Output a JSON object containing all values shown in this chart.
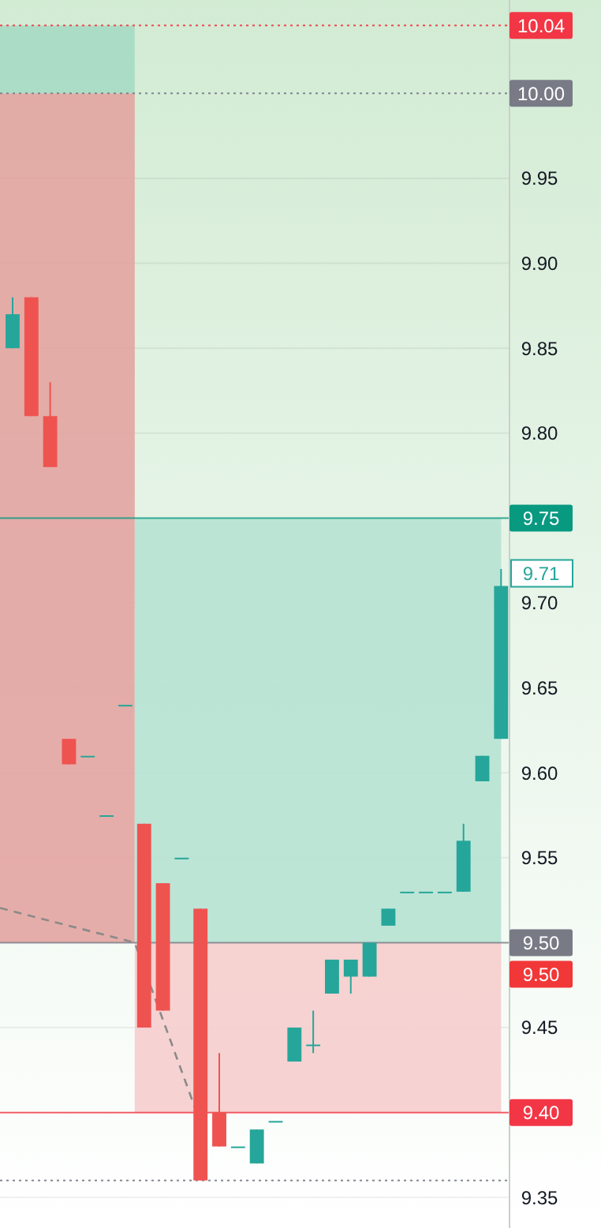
{
  "chart_data": {
    "type": "candlestick",
    "categories": [
      null,
      null,
      null,
      null,
      null,
      null,
      null,
      null,
      null,
      null,
      null,
      null,
      null,
      null,
      null,
      null,
      null,
      null,
      null,
      null,
      null,
      null,
      null,
      null,
      null,
      null,
      null
    ],
    "ohlc": [
      [
        9.85,
        9.88,
        9.85,
        9.87
      ],
      [
        9.88,
        9.88,
        9.81,
        9.81
      ],
      [
        9.81,
        9.83,
        9.78,
        9.78
      ],
      [
        9.62,
        9.62,
        9.605,
        9.605
      ],
      [
        9.61,
        9.61,
        9.61,
        9.61
      ],
      [
        9.575,
        9.575,
        9.575,
        9.575
      ],
      [
        9.64,
        9.64,
        9.64,
        9.64
      ],
      [
        9.57,
        9.57,
        9.45,
        9.45
      ],
      [
        9.535,
        9.535,
        9.46,
        9.46
      ],
      [
        9.55,
        9.55,
        9.55,
        9.55
      ],
      [
        9.52,
        9.52,
        9.36,
        9.36
      ],
      [
        9.4,
        9.435,
        9.38,
        9.38
      ],
      [
        9.38,
        9.38,
        9.38,
        9.38
      ],
      [
        9.37,
        9.39,
        9.37,
        9.39
      ],
      [
        9.395,
        9.395,
        9.395,
        9.395
      ],
      [
        9.43,
        9.45,
        9.43,
        9.45
      ],
      [
        9.44,
        9.46,
        9.435,
        9.44
      ],
      [
        9.47,
        9.49,
        9.47,
        9.49
      ],
      [
        9.48,
        9.49,
        9.47,
        9.49
      ],
      [
        9.48,
        9.5,
        9.48,
        9.5
      ],
      [
        9.51,
        9.52,
        9.51,
        9.52
      ],
      [
        9.53,
        9.53,
        9.53,
        9.53
      ],
      [
        9.53,
        9.53,
        9.53,
        9.53
      ],
      [
        9.53,
        9.53,
        9.53,
        9.53
      ],
      [
        9.53,
        9.57,
        9.53,
        9.56
      ],
      [
        9.595,
        9.61,
        9.595,
        9.61
      ],
      [
        9.62,
        9.72,
        9.62,
        9.71
      ]
    ],
    "colors": [
      "#26a69a",
      "#ef5350",
      "#ef5350",
      "#ef5350",
      "#26a69a",
      "#26a69a",
      "#26a69a",
      "#ef5350",
      "#ef5350",
      "#26a69a",
      "#ef5350",
      "#ef5350",
      "#26a69a",
      "#26a69a",
      "#26a69a",
      "#26a69a",
      "#26a69a",
      "#26a69a",
      "#26a69a",
      "#26a69a",
      "#26a69a",
      "#26a69a",
      "#26a69a",
      "#26a69a",
      "#26a69a",
      "#26a69a",
      "#26a69a"
    ],
    "ylim": [
      9.332,
      10.055
    ],
    "yticks": [
      9.35,
      9.45,
      9.55,
      {
        "value": 9.6,
        "label": "9.60"
      },
      9.65,
      {
        "value": 9.7,
        "label": "9.70"
      },
      {
        "value": 9.8,
        "label": "9.80"
      },
      9.85,
      {
        "value": 9.9,
        "label": "9.90"
      },
      9.95
    ],
    "tick_labels": "y",
    "grid": "y",
    "bands": [
      {
        "axis": "y",
        "from": 10.0,
        "to": 10.04,
        "color": "#a6dbc4"
      },
      {
        "axis": "y",
        "from": 9.5,
        "to": 10.0,
        "color": "#e3a4a1"
      },
      {
        "axis": "y",
        "from": 9.5,
        "to": 9.75,
        "color": "#b6e2d3"
      },
      {
        "axis": "y",
        "from": 9.4,
        "to": 9.5,
        "color": "#f6cdcd",
        "label": "9.50"
      }
    ],
    "ref_lines": [
      {
        "axis": "y",
        "value": 10.04,
        "label": "10.04",
        "color": "#f23645",
        "line_style": "dotted"
      },
      {
        "axis": "y",
        "value": 10.0,
        "label": "10.00",
        "color": "#787b86",
        "line_style": "dotted"
      },
      {
        "axis": "y",
        "value": 9.75,
        "label": "9.75",
        "color": "#089981",
        "line_style": "solid"
      },
      {
        "axis": "y",
        "value": 9.5,
        "label": "9.50",
        "color": "#787b86",
        "line_style": "solid"
      },
      {
        "axis": "y",
        "value": 9.4,
        "label": "9.40",
        "color": "#f23645",
        "line_style": "solid"
      },
      {
        "axis": "y",
        "value": 9.36,
        "label": null,
        "color": "#787b86",
        "line_style": "dotted"
      }
    ],
    "annotations": [
      "9.71"
    ]
  }
}
